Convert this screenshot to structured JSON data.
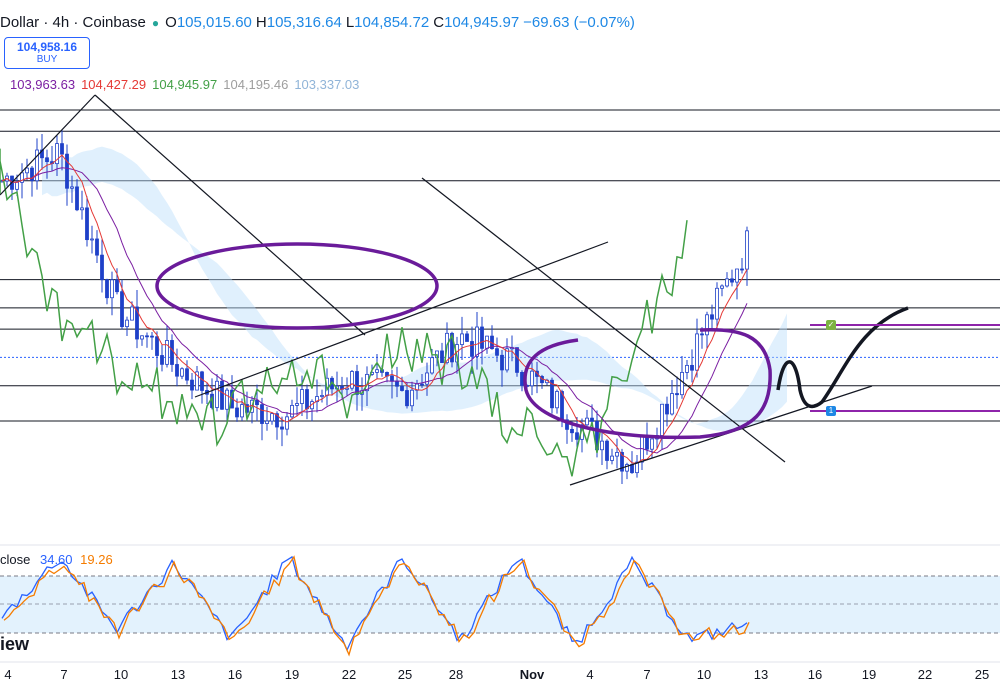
{
  "header": {
    "symbol": "Dollar · 4h · Coinbase",
    "open_label": "O",
    "open": "105,015.60",
    "high_label": "H",
    "high": "105,316.64",
    "low_label": "L",
    "low": "104,854.72",
    "close_label": "C",
    "close": "104,945.97",
    "change": "−69.63 (−0.07%)"
  },
  "order_button": {
    "price": "104,958.16",
    "label": "BUY"
  },
  "ichimoku_values": [
    {
      "text": "103,963.63",
      "color": "#7b1fa2"
    },
    {
      "text": "104,427.29",
      "color": "#e53935"
    },
    {
      "text": "104,945.97",
      "color": "#43a047"
    },
    {
      "text": "104,195.46",
      "color": "#9e9e9e"
    },
    {
      "text": "103,337.03",
      "color": "#90b4d8"
    }
  ],
  "oscillator": {
    "label": "close",
    "k": "34.60",
    "d": "19.26",
    "k_color": "#2962ff",
    "d_color": "#f57c00"
  },
  "watermark": "iew",
  "x_axis": [
    "4",
    "7",
    "10",
    "13",
    "16",
    "19",
    "22",
    "25",
    "28",
    "Nov",
    "4",
    "7",
    "10",
    "13",
    "16",
    "19",
    "22",
    "25"
  ],
  "colors": {
    "accent": "#2962ff",
    "drawing_purple": "#6a1b9a",
    "cloud": "#bbdefb",
    "rsi_band": "#e3f2fd"
  },
  "chart_data": {
    "type": "line",
    "title": "",
    "xlabel": "",
    "ylabel": "",
    "x": [
      "4",
      "7",
      "10",
      "13",
      "16",
      "19",
      "22",
      "25",
      "28",
      "Nov",
      "4",
      "7",
      "10",
      "13",
      "16",
      "19",
      "22",
      "25"
    ],
    "close_series": [
      105800,
      106200,
      104000,
      103200,
      102600,
      102500,
      103000,
      102800,
      103600,
      103200,
      102400,
      101800,
      103300,
      104900
    ],
    "horizontal_levels": [
      106800,
      106500,
      105800,
      104400,
      104000,
      103700,
      103300,
      102900,
      102400
    ],
    "stoch_series": [
      {
        "name": "close",
        "values": [
          40,
          95,
          30,
          90,
          20,
          95,
          15,
          95,
          20,
          95,
          15,
          90,
          20,
          34.6
        ]
      }
    ],
    "oscillator_range": [
      0,
      100
    ]
  }
}
